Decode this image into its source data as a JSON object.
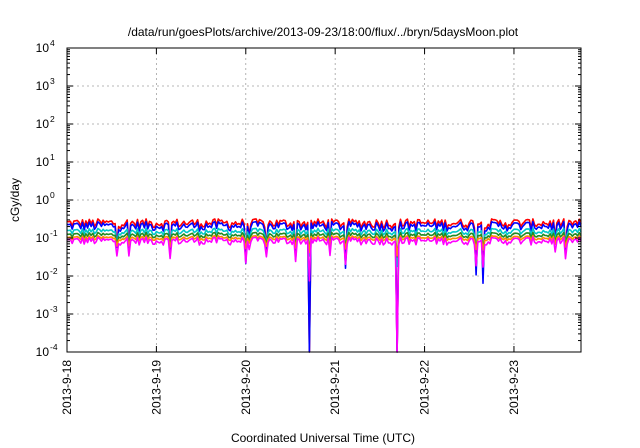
{
  "chart_data": {
    "type": "line",
    "title": "/data/run/goesPlots/archive/2013-09-23/18:00/flux/../bryn/5daysMoon.plot",
    "xlabel": "Coordinated Universal Time (UTC)",
    "ylabel": "cGy/day",
    "yscale": "log",
    "ylim": [
      0.0001,
      10000
    ],
    "xlim": [
      "2013-09-18T00:00",
      "2013-09-23T18:00"
    ],
    "grid": true,
    "yticks": [
      {
        "base": "10",
        "exp": "-4"
      },
      {
        "base": "10",
        "exp": "-3"
      },
      {
        "base": "10",
        "exp": "-2"
      },
      {
        "base": "10",
        "exp": "-1"
      },
      {
        "base": "10",
        "exp": "0"
      },
      {
        "base": "10",
        "exp": "1"
      },
      {
        "base": "10",
        "exp": "2"
      },
      {
        "base": "10",
        "exp": "3"
      },
      {
        "base": "10",
        "exp": "4"
      }
    ],
    "xticks": [
      "2013-9-18",
      "2013-9-19",
      "2013-9-20",
      "2013-9-21",
      "2013-9-22",
      "2013-9-23"
    ],
    "series": [
      {
        "color": "#ff0000",
        "level": 0.25,
        "variation": 0.07
      },
      {
        "color": "#0000ff",
        "level": 0.21,
        "variation": 0.06
      },
      {
        "color": "#00c8c8",
        "level": 0.15,
        "variation": 0.03
      },
      {
        "color": "#228b22",
        "level": 0.12,
        "variation": 0.02
      },
      {
        "color": "#ff8c00",
        "level": 0.1,
        "variation": 0.015
      },
      {
        "color": "#ff00ff",
        "level": 0.085,
        "variation": 0.02
      }
    ]
  }
}
